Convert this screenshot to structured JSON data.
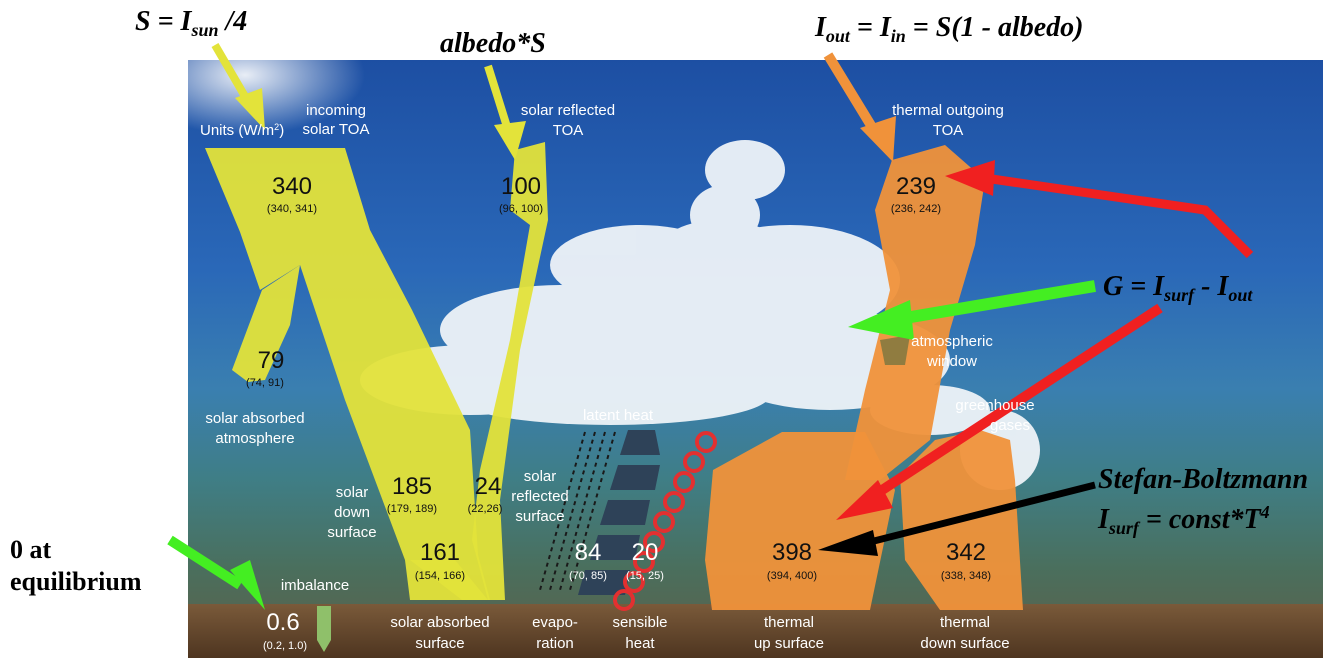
{
  "annotations": {
    "s_eq": "S = I",
    "s_sub": "sun",
    "s_tail": " /4",
    "albedo": "albedo*S",
    "iout_I1": "I",
    "iout_sub1": "out",
    "iout_mid": " = I",
    "iout_sub2": "in",
    "iout_tail": " = S(1 - albedo)",
    "g_eq": "G = I",
    "g_sub1": "surf",
    "g_mid": "  - I",
    "g_sub2": "out",
    "sb_title": "Stefan-Boltzmann",
    "sb_I": "I",
    "sb_sub": "surf",
    "sb_tail": "  = const*T",
    "sb_exp": "4",
    "eq_line1": "0 at",
    "eq_line2": "equilibrium"
  },
  "labels": {
    "units_prefix": "Units (W/m",
    "units_exp": "2",
    "units_suffix": ")",
    "incoming1": "incoming",
    "incoming2": "solar TOA",
    "reflected_toa1": "solar reflected",
    "reflected_toa2": "TOA",
    "thermal_out1": "thermal outgoing",
    "thermal_out2": "TOA",
    "abs_atm1": "solar absorbed",
    "abs_atm2": "atmosphere",
    "down1": "solar",
    "down2": "down",
    "down3": "surface",
    "refl_surf1": "solar",
    "refl_surf2": "reflected",
    "refl_surf3": "surface",
    "latent": "latent heat",
    "atm_window1": "atmospheric",
    "atm_window2": "window",
    "greenhouse1": "greenhouse",
    "greenhouse2": "gases",
    "imbalance": "imbalance",
    "abs_surf1": "solar absorbed",
    "abs_surf2": "surface",
    "evap1": "evapo-",
    "evap2": "ration",
    "sens1": "sensible",
    "sens2": "heat",
    "up1": "thermal",
    "up2": "up surface",
    "dn1": "thermal",
    "dn2": "down surface"
  },
  "values": {
    "incoming": {
      "value": "340",
      "range": "(340, 341)"
    },
    "reflected_toa": {
      "value": "100",
      "range": "(96, 100)"
    },
    "thermal_out": {
      "value": "239",
      "range": "(236, 242)"
    },
    "absorbed_atm": {
      "value": "79",
      "range": "(74, 91)"
    },
    "down_surface": {
      "value": "185",
      "range": "(179, 189)"
    },
    "reflected_surface": {
      "value": "24",
      "range": "(22,26)"
    },
    "absorbed_surface": {
      "value": "161",
      "range": "(154, 166)"
    },
    "evaporation": {
      "value": "84",
      "range": "(70, 85)"
    },
    "sensible": {
      "value": "20",
      "range": "(15, 25)"
    },
    "thermal_up": {
      "value": "398",
      "range": "(394, 400)"
    },
    "thermal_down": {
      "value": "342",
      "range": "(338, 348)"
    },
    "imbalance": {
      "value": "0.6",
      "range": "(0.2, 1.0)"
    }
  },
  "colors": {
    "solar": "#e3e33a",
    "thermal": "#f0923a",
    "red_arrow": "#f02020",
    "green_arrow": "#44ee22",
    "black_arrow": "#000000",
    "sky_top": "#1d4fa3",
    "ground": "#6b4a2e"
  }
}
